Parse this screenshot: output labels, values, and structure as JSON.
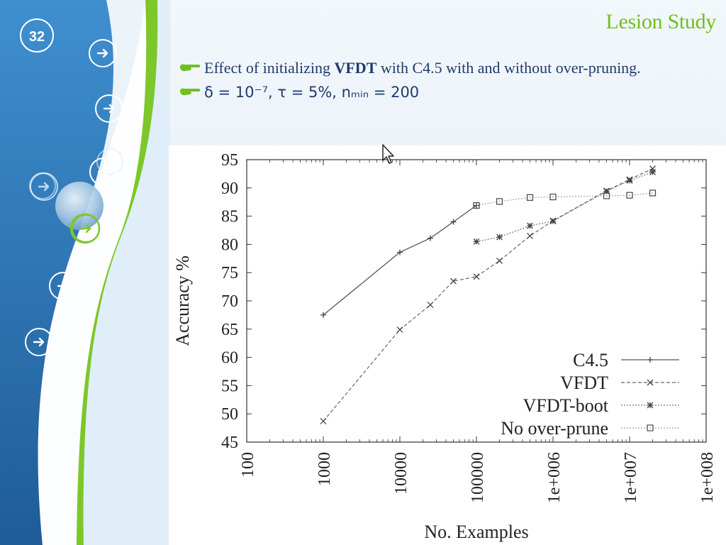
{
  "slide": {
    "number": "32",
    "title": "Lesion Study",
    "bullets": [
      {
        "pre": "Effect of initializing ",
        "bold": "VFDT",
        "post": " with C4.5 with and without over-pruning."
      }
    ],
    "formula": "δ = 10⁻⁷, τ = 5%, nₘᵢₙ = 200"
  },
  "icons": {
    "nav": "arrow-right-icon",
    "bullet": "pointing-hand-icon",
    "cursor": "mouse-cursor-icon"
  },
  "colors": {
    "title": "#6fbf1f",
    "text": "#1f3b6f",
    "panel_blue": "#2f79b8",
    "accent_green": "#7dc72a"
  },
  "chart_data": {
    "type": "line",
    "xlabel": "No. Examples",
    "ylabel": "Accuracy %",
    "x_scale": "log",
    "xlim": [
      100,
      100000000
    ],
    "ylim": [
      45,
      95
    ],
    "x_ticks": [
      100,
      1000,
      10000,
      100000,
      1000000,
      10000000,
      100000000
    ],
    "x_tick_labels": [
      "100",
      "1000",
      "10000",
      "100000",
      "1e+006",
      "1e+007",
      "1e+008"
    ],
    "y_ticks": [
      45,
      50,
      55,
      60,
      65,
      70,
      75,
      80,
      85,
      90,
      95
    ],
    "legend_position": "bottom-right",
    "grid": false,
    "series": [
      {
        "name": "C4.5",
        "marker": "+",
        "dash": "solid",
        "points": [
          [
            1000,
            67.5
          ],
          [
            10000,
            78.6
          ],
          [
            25000,
            81.1
          ],
          [
            50000,
            84.0
          ],
          [
            100000,
            86.9
          ]
        ]
      },
      {
        "name": "VFDT",
        "marker": "x",
        "dash": "dashed",
        "points": [
          [
            1000,
            48.7
          ],
          [
            10000,
            64.9
          ],
          [
            25000,
            69.3
          ],
          [
            50000,
            73.5
          ],
          [
            100000,
            74.3
          ],
          [
            200000,
            77.1
          ],
          [
            500000,
            81.5
          ],
          [
            1000000,
            84.2
          ],
          [
            5000000,
            89.5
          ],
          [
            10000000,
            91.5
          ],
          [
            20000000,
            93.4
          ]
        ]
      },
      {
        "name": "VFDT-boot",
        "marker": "*",
        "dash": "dotted",
        "points": [
          [
            100000,
            80.5
          ],
          [
            200000,
            81.3
          ],
          [
            500000,
            83.3
          ],
          [
            1000000,
            84.1
          ],
          [
            5000000,
            89.4
          ],
          [
            10000000,
            91.3
          ],
          [
            20000000,
            92.8
          ]
        ]
      },
      {
        "name": "No over-prune",
        "marker": "square",
        "dash": "fine-dotted",
        "points": [
          [
            100000,
            86.9
          ],
          [
            200000,
            87.6
          ],
          [
            500000,
            88.3
          ],
          [
            1000000,
            88.4
          ],
          [
            5000000,
            88.6
          ],
          [
            10000000,
            88.7
          ],
          [
            20000000,
            89.1
          ]
        ]
      }
    ]
  }
}
